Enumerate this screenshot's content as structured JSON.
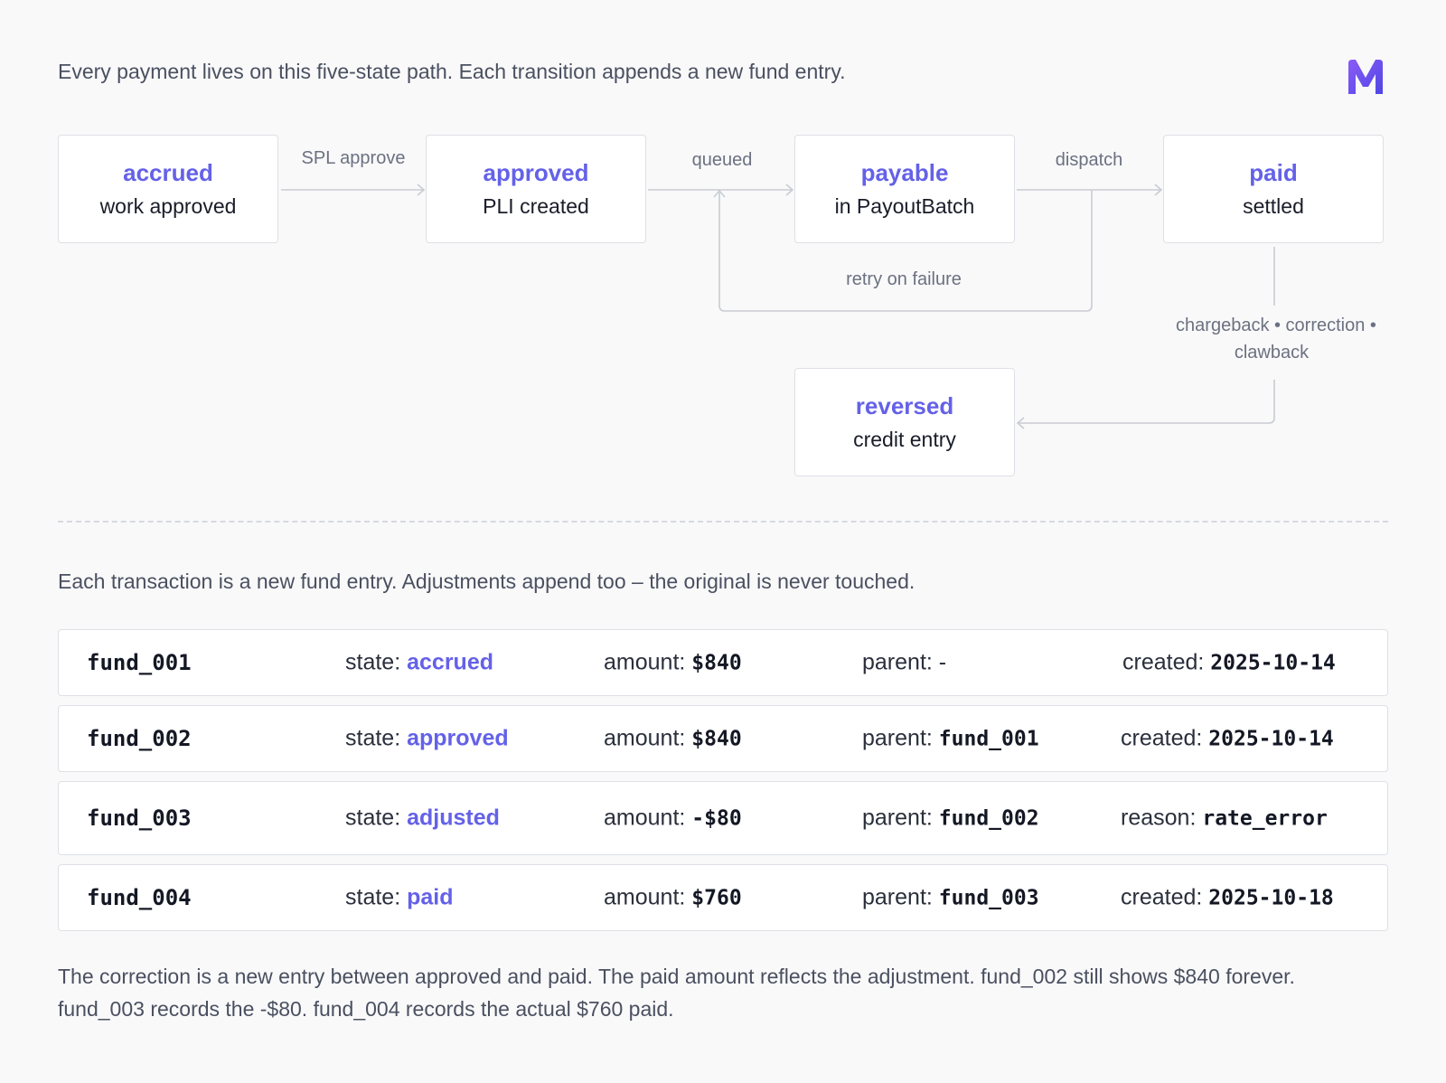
{
  "intro": "Every payment lives on this five-state path. Each transition appends a new fund entry.",
  "logo_letter": "M",
  "accent_color": "#6461e8",
  "states": [
    {
      "name": "accrued",
      "desc": "work approved"
    },
    {
      "name": "approved",
      "desc": "PLI created"
    },
    {
      "name": "payable",
      "desc": "in PayoutBatch"
    },
    {
      "name": "paid",
      "desc": "settled"
    },
    {
      "name": "reversed",
      "desc": "credit entry"
    }
  ],
  "transitions": {
    "spl_approve": "SPL approve",
    "queued": "queued",
    "dispatch": "dispatch",
    "retry": "retry on failure",
    "reverse_line1": "chargeback • correction •",
    "reverse_line2": "clawback"
  },
  "ledger_intro": "Each transaction is a new fund entry. Adjustments append too – the original is never touched.",
  "ledger": [
    {
      "id": "fund_001",
      "state_label": "state:",
      "state": "accrued",
      "amount_label": "amount:",
      "amount": "$840",
      "parent_label": "parent:",
      "parent": "-",
      "last_label": "created:",
      "last_value": "2025-10-14"
    },
    {
      "id": "fund_002",
      "state_label": "state:",
      "state": "approved",
      "amount_label": "amount:",
      "amount": "$840",
      "parent_label": "parent:",
      "parent": "fund_001",
      "last_label": "created:",
      "last_value": "2025-10-14"
    },
    {
      "id": "fund_003",
      "state_label": "state:",
      "state": "adjusted",
      "amount_label": "amount:",
      "amount": "-$80",
      "parent_label": "parent:",
      "parent": "fund_002",
      "last_label": "reason:",
      "last_value": "rate_error"
    },
    {
      "id": "fund_004",
      "state_label": "state:",
      "state": "paid",
      "amount_label": "amount:",
      "amount": "$760",
      "parent_label": "parent:",
      "parent": "fund_003",
      "last_label": "created:",
      "last_value": "2025-10-18"
    }
  ],
  "footer": "The correction is a new entry between approved and paid. The paid amount reflects the adjustment. fund_002 still shows $840 forever. fund_003 records the -$80. fund_004 records the actual $760 paid."
}
